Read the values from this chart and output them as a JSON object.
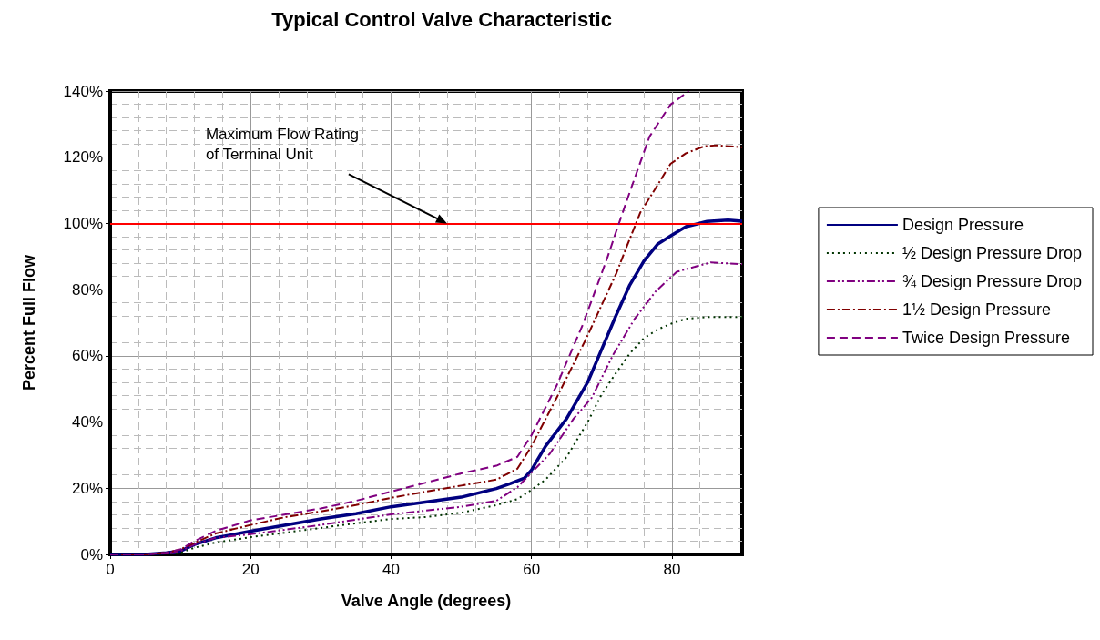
{
  "chart_data": {
    "type": "line",
    "title": "Typical Control Valve Characteristic",
    "xlabel": "Valve Angle (degrees)",
    "ylabel": "Percent Full Flow",
    "xlim": [
      0,
      90
    ],
    "xticks": [
      0,
      20,
      40,
      60,
      80
    ],
    "ylim": [
      0,
      140
    ],
    "yticks": [
      {
        "value": 0,
        "label": "0%"
      },
      {
        "value": 20,
        "label": "20%"
      },
      {
        "value": 40,
        "label": "40%"
      },
      {
        "value": 60,
        "label": "60%"
      },
      {
        "value": 80,
        "label": "80%"
      },
      {
        "value": 100,
        "label": "100%"
      },
      {
        "value": 120,
        "label": "120%"
      },
      {
        "value": 140,
        "label": "140%"
      }
    ],
    "grid": true,
    "legend": "right",
    "marker": "none",
    "series": [
      {
        "name": "Design Pressure",
        "color": "#000080",
        "line_style": "solid",
        "x": [
          0,
          5,
          8,
          10,
          12,
          15,
          20,
          30,
          35,
          40,
          50,
          55,
          57,
          59,
          60,
          62,
          65,
          68,
          70,
          72,
          74,
          76,
          78,
          80,
          82,
          85,
          88,
          90
        ],
        "values": [
          0,
          0,
          0.5,
          1,
          3,
          5,
          7,
          10.7,
          12.3,
          14.4,
          17.3,
          19.9,
          21.4,
          23.1,
          25.5,
          32.7,
          41,
          52,
          62,
          72,
          81.4,
          88.6,
          93.8,
          96.5,
          99,
          100.6,
          101,
          100.7
        ]
      },
      {
        "name": "½ Design Pressure Drop",
        "color": "#003300",
        "line_style": "dotted",
        "x": [
          0,
          5,
          8,
          10,
          12,
          15,
          20,
          25,
          30,
          35,
          40,
          45,
          50,
          55,
          58,
          60,
          62,
          65,
          68,
          70,
          72,
          74,
          76,
          78,
          80,
          82,
          85,
          90
        ],
        "values": [
          0,
          0,
          0.3,
          0.5,
          2,
          3.6,
          5.2,
          6.6,
          8,
          9.4,
          10.7,
          11.3,
          12.6,
          14.9,
          16.7,
          19.5,
          22.6,
          29.4,
          40,
          48.4,
          54.7,
          60.7,
          65.3,
          68,
          69.8,
          71.2,
          71.7,
          71.7
        ]
      },
      {
        "name": "¾ Design Pressure Drop",
        "color": "#800080",
        "line_style": "dashdotdot",
        "x": [
          0,
          5,
          8,
          10,
          12,
          15,
          20,
          30,
          40,
          50,
          55,
          58,
          62.6,
          66,
          68.6,
          71.6,
          74.7,
          77.7,
          80.7,
          85.5,
          90
        ],
        "values": [
          0,
          0,
          0.5,
          1,
          3,
          5,
          6.1,
          8.9,
          12.1,
          14.4,
          16.2,
          20.3,
          30.4,
          41,
          47.4,
          60.2,
          71.2,
          79.5,
          85.4,
          88.2,
          87.7
        ]
      },
      {
        "name": "1½ Design Pressure",
        "color": "#800000",
        "line_style": "dashdot",
        "x": [
          0,
          5,
          8,
          10,
          12,
          15,
          20,
          25,
          30,
          35,
          40,
          45,
          50,
          55,
          58,
          60,
          63.6,
          67.7,
          72.1,
          73.6,
          75.5,
          77.7,
          79.8,
          82,
          84.6,
          86.3,
          90
        ],
        "values": [
          0,
          0,
          0.5,
          1.5,
          3.5,
          6.3,
          8.9,
          11.3,
          13,
          14.9,
          17.1,
          19,
          20.8,
          22.6,
          25.9,
          32.7,
          47.4,
          64.8,
          85,
          93.2,
          103.3,
          110.7,
          118,
          121.2,
          123.3,
          123.6,
          123
        ]
      },
      {
        "name": "Twice Design Pressure",
        "color": "#800080",
        "line_style": "dashed",
        "x": [
          0,
          5,
          8,
          10,
          12,
          15,
          20,
          25,
          30,
          35,
          40,
          45,
          50,
          55,
          58,
          60,
          63.6,
          67.3,
          70.8,
          72.1,
          74.2,
          76.8,
          79.8,
          82.4
        ],
        "values": [
          0,
          0,
          0.5,
          1.5,
          4,
          7.1,
          10.3,
          12.1,
          13.9,
          16.2,
          19,
          21.7,
          24.5,
          26.8,
          29.5,
          36,
          51.1,
          69.4,
          89.6,
          97.8,
          110.7,
          126.2,
          135.9,
          140
        ]
      }
    ],
    "ref_lines": [
      {
        "axis": "y",
        "value": 100,
        "color": "#ff0000"
      }
    ],
    "annotations": [
      "Maximum Flow Rating\nof Terminal Unit"
    ]
  }
}
